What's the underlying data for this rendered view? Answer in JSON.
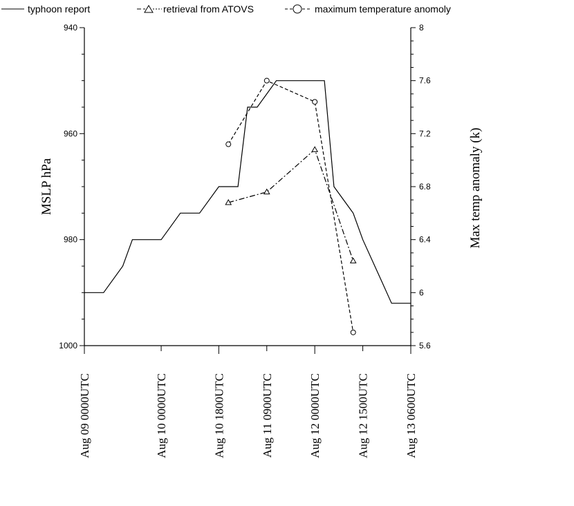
{
  "chart_data": {
    "type": "line",
    "legend": {
      "placement": "top",
      "entries": [
        "typhoon report",
        "retrieval from ATOVS",
        "maximum temperature anomoly"
      ]
    },
    "x_axis": {
      "scale": "time",
      "range": [
        "Aug 09 0000UTC",
        "Aug 13 0600UTC"
      ],
      "tick_labels": [
        "Aug 09 0000UTC",
        "Aug 10 0000UTC",
        "Aug 10 1800UTC",
        "Aug 11 0900UTC",
        "Aug 12 0000UTC",
        "Aug 12 1500UTC",
        "Aug 13 0600UTC"
      ]
    },
    "y_left": {
      "label": "MSLP  hPa",
      "range": [
        940,
        1000
      ],
      "inverted": true,
      "tick_labels": [
        "940",
        "960",
        "980",
        "1000"
      ]
    },
    "y_right": {
      "label": "Max temp anomaly (k)",
      "range": [
        5.6,
        8
      ],
      "tick_labels": [
        "8",
        "7.6",
        "7.2",
        "6.8",
        "6.4",
        "6",
        "5.6"
      ]
    },
    "grid": false,
    "series": [
      {
        "name": "typhoon report",
        "axis": "left",
        "style": "solid",
        "points": [
          [
            "Aug 09 0000UTC",
            990
          ],
          [
            "Aug 09 0600UTC",
            990
          ],
          [
            "Aug 09 1200UTC",
            985
          ],
          [
            "Aug 09 1500UTC",
            980
          ],
          [
            "Aug 10 0000UTC",
            980
          ],
          [
            "Aug 10 0600UTC",
            975
          ],
          [
            "Aug 10 1200UTC",
            975
          ],
          [
            "Aug 10 1800UTC",
            970
          ],
          [
            "Aug 11 0000UTC",
            970
          ],
          [
            "Aug 11 0300UTC",
            955
          ],
          [
            "Aug 11 0600UTC",
            955
          ],
          [
            "Aug 11 1200UTC",
            950
          ],
          [
            "Aug 12 0000UTC",
            950
          ],
          [
            "Aug 12 0300UTC",
            950
          ],
          [
            "Aug 12 0600UTC",
            970
          ],
          [
            "Aug 12 1200UTC",
            975
          ],
          [
            "Aug 12 1500UTC",
            980
          ],
          [
            "Aug 12 2100UTC",
            988
          ],
          [
            "Aug 13 0000UTC",
            992
          ],
          [
            "Aug 13 0600UTC",
            992
          ]
        ]
      },
      {
        "name": "retrieval from ATOVS",
        "axis": "left",
        "style": "dash-dot",
        "marker": "triangle",
        "points": [
          [
            "Aug 10 2100UTC",
            973
          ],
          [
            "Aug 11 0900UTC",
            971
          ],
          [
            "Aug 12 0000UTC",
            963
          ],
          [
            "Aug 12 1200UTC",
            984
          ]
        ]
      },
      {
        "name": "maximum temperature anomoly",
        "axis": "right",
        "style": "dashed",
        "marker": "circle",
        "points": [
          [
            "Aug 10 2100UTC",
            7.12
          ],
          [
            "Aug 11 0900UTC",
            7.6
          ],
          [
            "Aug 12 0000UTC",
            7.44
          ],
          [
            "Aug 12 1200UTC",
            5.7
          ]
        ]
      }
    ]
  }
}
